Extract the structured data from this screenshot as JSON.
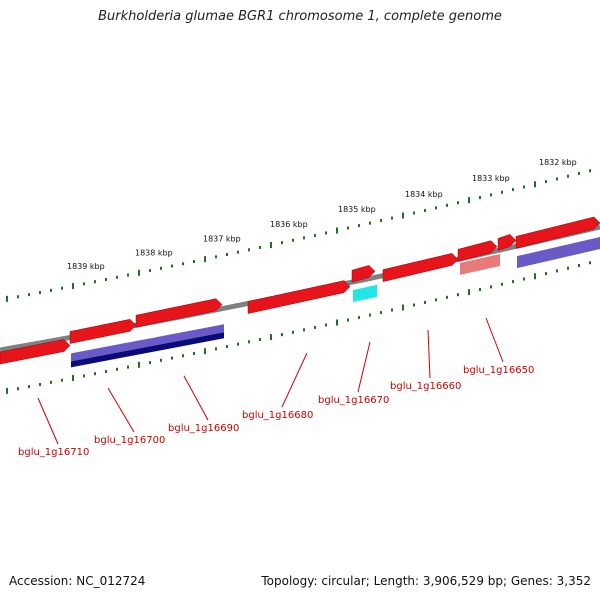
{
  "title": "Burkholderia glumae BGR1 chromosome 1, complete genome",
  "footer": {
    "accession": "Accession: NC_012724",
    "topology": "Topology: circular; Length: 3,906,529 bp; Genes: 3,352"
  },
  "colors": {
    "backbone": "#808080",
    "gene_forward": "#e8141c",
    "gene_forward_pale": "#e87a7a",
    "gene_rna": "#22e6e6",
    "blast_blue": "#6a5ac8",
    "blast_navy": "#0a0a7a",
    "tick": "#207020",
    "label": "#cc0000"
  },
  "kbp_labels": [
    "1839 kbp",
    "1838 kbp",
    "1837 kbp",
    "1836 kbp",
    "1835 kbp",
    "1834 kbp",
    "1833 kbp",
    "1832 kbp"
  ],
  "gene_labels": [
    "bglu_1g16710",
    "bglu_1g16700",
    "bglu_1g16690",
    "bglu_1g16680",
    "bglu_1g16670",
    "bglu_1g16660",
    "bglu_1g16650"
  ]
}
